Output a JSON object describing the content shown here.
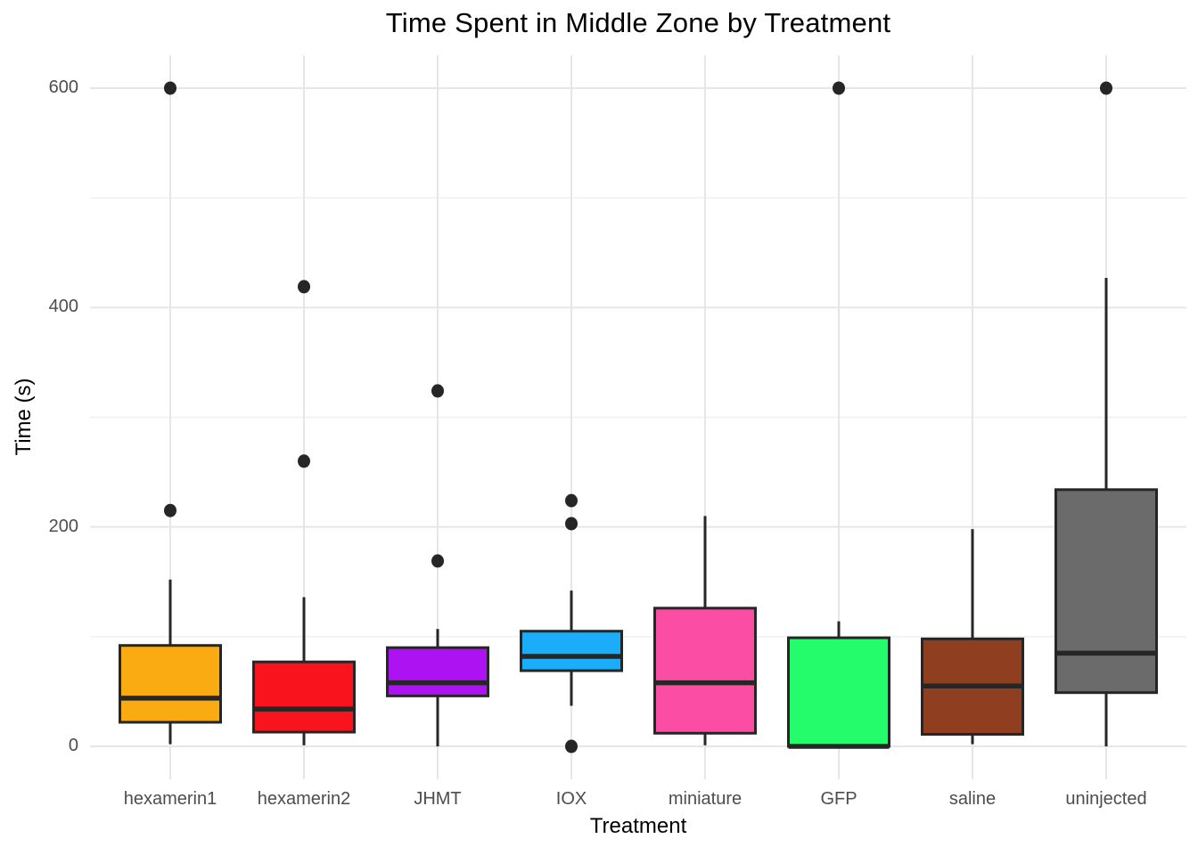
{
  "title": "Time Spent in Middle Zone by Treatment",
  "chart_data": {
    "type": "boxplot",
    "title": "Time Spent in Middle Zone by Treatment",
    "xlabel": "Treatment",
    "ylabel": "Time (s)",
    "ylim": [
      -30,
      630
    ],
    "yticks": [
      0,
      200,
      400,
      600
    ],
    "ytick_labels": [
      "0",
      "200",
      "400",
      "600"
    ],
    "minor_gridlines": [
      100,
      300,
      500
    ],
    "grid": true,
    "legend": "none",
    "categories": [
      "hexamerin1",
      "hexamerin2",
      "JHMT",
      "IOX",
      "miniature",
      "GFP",
      "saline",
      "uninjected"
    ],
    "series": [
      {
        "category": "hexamerin1",
        "color": "#FBAB12",
        "whisker_low": 2,
        "q1": 22,
        "median": 44,
        "q3": 92,
        "whisker_high": 152,
        "outliers": [
          215,
          600
        ]
      },
      {
        "category": "hexamerin2",
        "color": "#F9141D",
        "whisker_low": 1,
        "q1": 13,
        "median": 34,
        "q3": 77,
        "whisker_high": 136,
        "outliers": [
          260,
          419
        ]
      },
      {
        "category": "JHMT",
        "color": "#AD12F2",
        "whisker_low": 0,
        "q1": 46,
        "median": 58,
        "q3": 90,
        "whisker_high": 107,
        "outliers": [
          169,
          324
        ]
      },
      {
        "category": "IOX",
        "color": "#1BADFA",
        "whisker_low": 37,
        "q1": 69,
        "median": 82,
        "q3": 105,
        "whisker_high": 142,
        "outliers": [
          0,
          203,
          224
        ]
      },
      {
        "category": "miniature",
        "color": "#FC4DA5",
        "whisker_low": 1,
        "q1": 12,
        "median": 58,
        "q3": 126,
        "whisker_high": 210,
        "outliers": []
      },
      {
        "category": "GFP",
        "color": "#24FC6C",
        "whisker_low": 0,
        "q1": 0,
        "median": 0,
        "q3": 99,
        "whisker_high": 114,
        "outliers": [
          600
        ]
      },
      {
        "category": "saline",
        "color": "#8F3F1F",
        "whisker_low": 2,
        "q1": 11,
        "median": 55,
        "q3": 98,
        "whisker_high": 198,
        "outliers": []
      },
      {
        "category": "uninjected",
        "color": "#6B6B6B",
        "whisker_low": 0,
        "q1": 49,
        "median": 85,
        "q3": 234,
        "whisker_high": 427,
        "outliers": [
          600
        ]
      }
    ],
    "style": {
      "background": "#ffffff",
      "major_grid_color": "#e6e6e6",
      "minor_grid_color": "#f0f0f0",
      "box_border_color": "#262626",
      "outlier_color": "#262626",
      "tick_label_color": "#4d4d4d",
      "title_color": "#000000"
    }
  }
}
